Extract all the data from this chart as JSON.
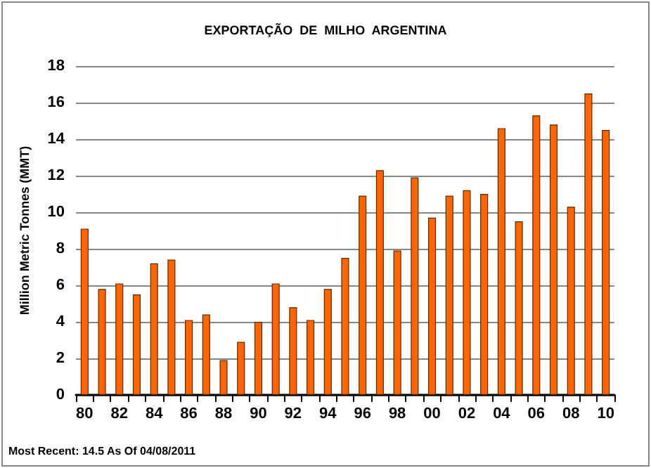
{
  "chart_data": {
    "type": "bar",
    "title": "EXPORTAÇÃO  DE  MILHO  ARGENTINA",
    "ylabel": "Million Metric Tonnes (MMT)",
    "categories": [
      "80",
      null,
      "82",
      null,
      "84",
      null,
      "86",
      null,
      "88",
      null,
      "90",
      null,
      "92",
      null,
      "94",
      null,
      "96",
      null,
      "98",
      null,
      "00",
      null,
      "02",
      null,
      "04",
      null,
      "06",
      null,
      "08",
      null,
      "10"
    ],
    "values": [
      9.1,
      5.8,
      6.1,
      5.5,
      7.2,
      7.4,
      4.1,
      4.4,
      1.9,
      2.9,
      4.0,
      6.1,
      4.8,
      4.1,
      5.8,
      7.5,
      10.9,
      12.3,
      7.9,
      11.9,
      9.7,
      10.9,
      11.2,
      11.0,
      14.6,
      9.5,
      15.3,
      14.8,
      10.3,
      16.5,
      14.5
    ],
    "color": "#ff6600",
    "ylim": [
      0,
      18
    ],
    "yticks": [
      0,
      2,
      4,
      6,
      8,
      10,
      12,
      14,
      16,
      18
    ],
    "grid": "y",
    "annotations": [
      "Most Recent: 14.5 As Of 04/08/2011"
    ]
  }
}
